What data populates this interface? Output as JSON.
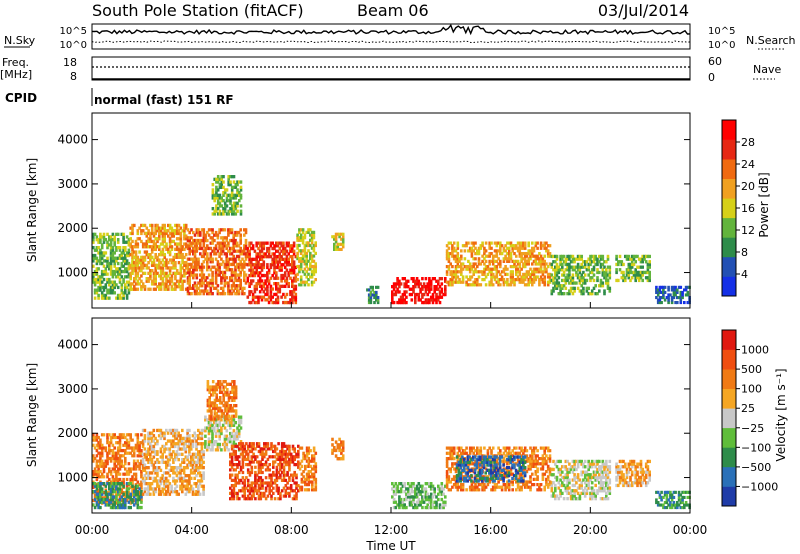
{
  "header": {
    "title": "South Pole Station (fitACF)",
    "beam": "Beam 06",
    "date": "03/Jul/2014"
  },
  "top_panels": {
    "nsky_label": "N.Sky",
    "nsearch_label": "N.Search",
    "nsky_ticks": [
      "10^5",
      "10^0"
    ],
    "nsearch_ticks": [
      "10^5",
      "10^0"
    ],
    "freq_label": "Freq.",
    "freq_unit": "[MHz]",
    "freq_ticks": [
      "18",
      "8"
    ],
    "nave_label": "Nave",
    "nave_ticks": [
      "60",
      "0"
    ],
    "cpid_label": "CPID",
    "cpid_value": "normal (fast) 151 RF"
  },
  "chart_data": [
    {
      "type": "heatmap",
      "name": "power",
      "ylabel": "Slant Range [km]",
      "ylim": [
        200,
        4600
      ],
      "yticks": [
        "4000",
        "3000",
        "2000",
        "1000"
      ],
      "colorbar_label": "Power [dB]",
      "colorbar_ticks": [
        "28",
        "24",
        "20",
        "16",
        "12",
        "8",
        "4"
      ],
      "colors": [
        "#1430e6",
        "#2250b4",
        "#2e8c4a",
        "#62b43c",
        "#d6d018",
        "#f0a020",
        "#f06a10",
        "#e62814",
        "#ff0000"
      ],
      "echo_regions": [
        {
          "t": [
            0.0,
            1.5
          ],
          "range": [
            400,
            1900
          ],
          "level": 3
        },
        {
          "t": [
            1.5,
            3.8
          ],
          "range": [
            600,
            2100
          ],
          "level": 5
        },
        {
          "t": [
            3.8,
            6.2
          ],
          "range": [
            500,
            2000
          ],
          "level": 6
        },
        {
          "t": [
            4.8,
            6.0
          ],
          "range": [
            2300,
            3200
          ],
          "level": 3
        },
        {
          "t": [
            6.2,
            8.2
          ],
          "range": [
            300,
            1700
          ],
          "level": 7
        },
        {
          "t": [
            8.2,
            9.0
          ],
          "range": [
            700,
            2000
          ],
          "level": 4
        },
        {
          "t": [
            9.6,
            10.1
          ],
          "range": [
            1500,
            1900
          ],
          "level": 4
        },
        {
          "t": [
            11.0,
            11.5
          ],
          "range": [
            300,
            700
          ],
          "level": 2
        },
        {
          "t": [
            12.0,
            14.2
          ],
          "range": [
            300,
            900
          ],
          "level": 8
        },
        {
          "t": [
            14.2,
            18.4
          ],
          "range": [
            700,
            1700
          ],
          "level": 5
        },
        {
          "t": [
            18.4,
            20.8
          ],
          "range": [
            500,
            1400
          ],
          "level": 3
        },
        {
          "t": [
            21.0,
            22.4
          ],
          "range": [
            800,
            1400
          ],
          "level": 3
        },
        {
          "t": [
            22.6,
            24.0
          ],
          "range": [
            300,
            700
          ],
          "level": 1
        }
      ]
    },
    {
      "type": "heatmap",
      "name": "velocity",
      "ylabel": "Slant Range [km]",
      "ylim": [
        200,
        4600
      ],
      "yticks": [
        "4000",
        "3000",
        "2000",
        "1000"
      ],
      "colorbar_label": "Velocity [m s⁻¹]",
      "colorbar_ticks": [
        "1000",
        "500",
        "100",
        "25",
        "−25",
        "−100",
        "−500",
        "−1000"
      ],
      "colors": [
        "#1f3ca8",
        "#2a70b8",
        "#2e8c4a",
        "#5fbd3a",
        "#c8c8c8",
        "#f5a623",
        "#f07a14",
        "#f04e10",
        "#e01810"
      ],
      "echo_regions": [
        {
          "t": [
            0.0,
            2.0
          ],
          "range": [
            400,
            2000
          ],
          "level": 6
        },
        {
          "t": [
            0.0,
            2.0
          ],
          "range": [
            300,
            900
          ],
          "level": 2
        },
        {
          "t": [
            2.0,
            4.5
          ],
          "range": [
            600,
            2100
          ],
          "level": 5
        },
        {
          "t": [
            4.5,
            6.0
          ],
          "range": [
            1600,
            2400
          ],
          "level": 4
        },
        {
          "t": [
            4.6,
            5.8
          ],
          "range": [
            2300,
            3200
          ],
          "level": 6
        },
        {
          "t": [
            5.5,
            8.3
          ],
          "range": [
            500,
            1800
          ],
          "level": 7
        },
        {
          "t": [
            8.3,
            9.0
          ],
          "range": [
            700,
            1700
          ],
          "level": 6
        },
        {
          "t": [
            9.6,
            10.1
          ],
          "range": [
            1400,
            1900
          ],
          "level": 6
        },
        {
          "t": [
            12.0,
            14.2
          ],
          "range": [
            300,
            900
          ],
          "level": 3
        },
        {
          "t": [
            14.2,
            18.4
          ],
          "range": [
            700,
            1700
          ],
          "level": 6
        },
        {
          "t": [
            14.6,
            17.4
          ],
          "range": [
            900,
            1500
          ],
          "level": 1
        },
        {
          "t": [
            18.4,
            20.8
          ],
          "range": [
            500,
            1400
          ],
          "level": 4
        },
        {
          "t": [
            21.0,
            22.4
          ],
          "range": [
            800,
            1400
          ],
          "level": 5
        },
        {
          "t": [
            22.6,
            24.0
          ],
          "range": [
            300,
            700
          ],
          "level": 2
        }
      ]
    }
  ],
  "x_axis": {
    "label": "Time UT",
    "ticks": [
      "00:00",
      "04:00",
      "08:00",
      "12:00",
      "16:00",
      "20:00",
      "00:00"
    ],
    "range_hours": [
      0,
      24
    ]
  }
}
